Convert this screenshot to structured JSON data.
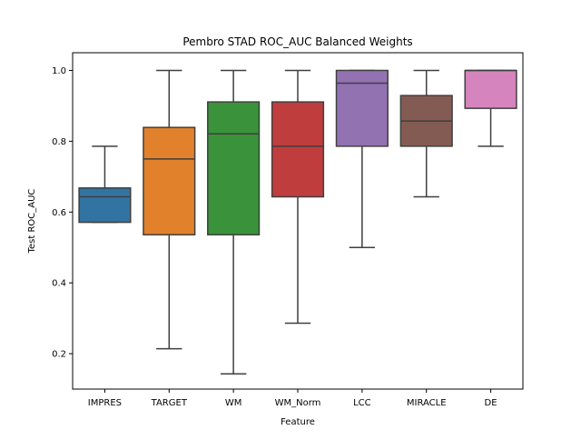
{
  "chart_data": {
    "type": "box",
    "title": "Pembro STAD ROC_AUC Balanced Weights",
    "xlabel": "Feature",
    "ylabel": "Test ROC_AUC",
    "ylim": [
      0.1,
      1.05
    ],
    "yticks": [
      0.2,
      0.4,
      0.6,
      0.8,
      1.0
    ],
    "ytick_labels": [
      "0.2",
      "0.4",
      "0.6",
      "0.8",
      "1.0"
    ],
    "grid": false,
    "legend": "none",
    "categories": [
      "IMPRES",
      "TARGET",
      "WM",
      "WM_Norm",
      "LCC",
      "MIRACLE",
      "DE"
    ],
    "boxes": [
      {
        "name": "IMPRES",
        "min": 0.571,
        "q1": 0.571,
        "median": 0.643,
        "q3": 0.668,
        "max": 0.786,
        "color": "#3274a1"
      },
      {
        "name": "TARGET",
        "min": 0.214,
        "q1": 0.536,
        "median": 0.75,
        "q3": 0.839,
        "max": 1.0,
        "color": "#e1812c"
      },
      {
        "name": "WM",
        "min": 0.143,
        "q1": 0.536,
        "median": 0.821,
        "q3": 0.911,
        "max": 1.0,
        "color": "#3a923a"
      },
      {
        "name": "WM_Norm",
        "min": 0.286,
        "q1": 0.643,
        "median": 0.786,
        "q3": 0.911,
        "max": 1.0,
        "color": "#c03d3e"
      },
      {
        "name": "LCC",
        "min": 0.5,
        "q1": 0.786,
        "median": 0.964,
        "q3": 1.0,
        "max": 1.0,
        "color": "#9372b2"
      },
      {
        "name": "MIRACLE",
        "min": 0.643,
        "q1": 0.786,
        "median": 0.857,
        "q3": 0.929,
        "max": 1.0,
        "color": "#845b53"
      },
      {
        "name": "DE",
        "min": 0.786,
        "q1": 0.893,
        "median": 1.0,
        "q3": 1.0,
        "max": 1.0,
        "color": "#d684bd"
      }
    ]
  }
}
